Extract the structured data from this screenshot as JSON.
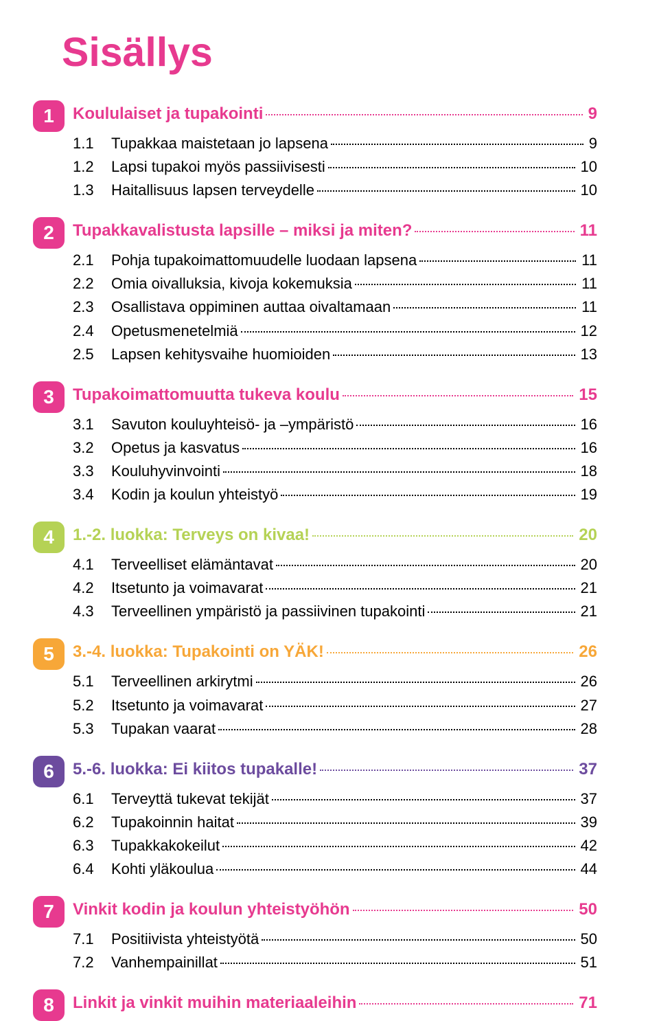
{
  "title": "Sisällys",
  "title_color": "#e73a8f",
  "sections": [
    {
      "num": "1",
      "badge_color": "#e73a8f",
      "title": "Koululaiset ja tupakointi",
      "title_color": "#e73a8f",
      "page": "9",
      "items": [
        {
          "num": "1.1",
          "label": "Tupakkaa maistetaan jo lapsena",
          "page": "9"
        },
        {
          "num": "1.2",
          "label": "Lapsi tupakoi myös passiivisesti",
          "page": "10"
        },
        {
          "num": "1.3",
          "label": "Haitallisuus lapsen terveydelle",
          "page": "10"
        }
      ]
    },
    {
      "num": "2",
      "badge_color": "#e73a8f",
      "title": "Tupakkavalistusta lapsille – miksi ja miten?",
      "title_color": "#e73a8f",
      "page": "11",
      "items": [
        {
          "num": "2.1",
          "label": "Pohja tupakoimattomuudelle luodaan lapsena",
          "page": "11"
        },
        {
          "num": "2.2",
          "label": "Omia oivalluksia, kivoja kokemuksia",
          "page": "11"
        },
        {
          "num": "2.3",
          "label": "Osallistava oppiminen auttaa oivaltamaan",
          "page": "11"
        },
        {
          "num": "2.4",
          "label": "Opetusmenetelmiä",
          "page": "12"
        },
        {
          "num": "2.5",
          "label": "Lapsen kehitysvaihe huomioiden",
          "page": "13"
        }
      ]
    },
    {
      "num": "3",
      "badge_color": "#e73a8f",
      "title": "Tupakoimattomuutta tukeva koulu",
      "title_color": "#e73a8f",
      "page": "15",
      "items": [
        {
          "num": "3.1",
          "label": "Savuton kouluyhteisö- ja –ympäristö",
          "page": "16"
        },
        {
          "num": "3.2",
          "label": "Opetus ja kasvatus",
          "page": "16"
        },
        {
          "num": "3.3",
          "label": "Kouluhyvinvointi",
          "page": "18"
        },
        {
          "num": "3.4",
          "label": "Kodin ja koulun yhteistyö",
          "page": "19"
        }
      ]
    },
    {
      "num": "4",
      "badge_color": "#b5d255",
      "title": "1.-2. luokka: Terveys on kivaa!",
      "title_color": "#b5d255",
      "page": "20",
      "items": [
        {
          "num": "4.1",
          "label": "Terveelliset elämäntavat",
          "page": "20"
        },
        {
          "num": "4.2",
          "label": "Itsetunto ja voimavarat",
          "page": "21"
        },
        {
          "num": "4.3",
          "label": "Terveellinen ympäristö ja passiivinen tupakointi",
          "page": "21"
        }
      ]
    },
    {
      "num": "5",
      "badge_color": "#f7a738",
      "title": "3.-4. luokka: Tupakointi on YÄK!",
      "title_color": "#f7a738",
      "page": "26",
      "items": [
        {
          "num": "5.1",
          "label": "Terveellinen arkirytmi",
          "page": "26"
        },
        {
          "num": "5.2",
          "label": "Itsetunto ja voimavarat",
          "page": "27"
        },
        {
          "num": "5.3",
          "label": "Tupakan vaarat",
          "page": "28"
        }
      ]
    },
    {
      "num": "6",
      "badge_color": "#6c4b9e",
      "title": "5.-6. luokka: Ei kiitos tupakalle!",
      "title_color": "#6c4b9e",
      "page": "37",
      "items": [
        {
          "num": "6.1",
          "label": "Terveyttä tukevat tekijät",
          "page": "37"
        },
        {
          "num": "6.2",
          "label": "Tupakoinnin haitat",
          "page": "39"
        },
        {
          "num": "6.3",
          "label": "Tupakkakokeilut",
          "page": "42"
        },
        {
          "num": "6.4",
          "label": "Kohti yläkoulua",
          "page": "44"
        }
      ]
    },
    {
      "num": "7",
      "badge_color": "#e73a8f",
      "title": "Vinkit kodin ja koulun yhteistyöhön",
      "title_color": "#e73a8f",
      "page": "50",
      "items": [
        {
          "num": "7.1",
          "label": "Positiivista yhteistyötä",
          "page": "50"
        },
        {
          "num": "7.2",
          "label": "Vanhempainillat",
          "page": "51"
        }
      ]
    },
    {
      "num": "8",
      "badge_color": "#e73a8f",
      "title": "Linkit ja vinkit muihin materiaaleihin",
      "title_color": "#e73a8f",
      "page": "71",
      "items": []
    }
  ]
}
